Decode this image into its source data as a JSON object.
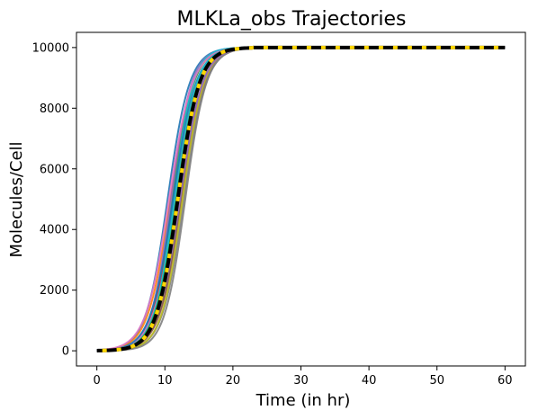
{
  "chart_data": {
    "type": "line",
    "title": "MLKLa_obs Trajectories",
    "xlabel": "Time (in hr)",
    "ylabel": "Molecules/Cell",
    "xlim": [
      -3,
      63
    ],
    "ylim": [
      -500,
      10500
    ],
    "xticks": [
      0,
      10,
      20,
      30,
      40,
      50,
      60
    ],
    "yticks": [
      0,
      2000,
      4000,
      6000,
      8000,
      10000
    ],
    "grid": false,
    "legend": false,
    "plateau": 10000,
    "trajectory_palette": [
      "#1f77b4",
      "#ff7f0e",
      "#2ca02c",
      "#d62728",
      "#9467bd",
      "#8c564b",
      "#e377c2",
      "#7f7f7f",
      "#bcbd22",
      "#17becf"
    ],
    "mean_line_colors": {
      "base": "#000000",
      "dash": "#ffd700"
    },
    "series": [
      {
        "midpoint": 10.4,
        "steepness": 0.62,
        "color": "#1f77b4"
      },
      {
        "midpoint": 10.8,
        "steepness": 0.6,
        "color": "#ff7f0e"
      },
      {
        "midpoint": 11.1,
        "steepness": 0.64,
        "color": "#2ca02c"
      },
      {
        "midpoint": 11.4,
        "steepness": 0.61,
        "color": "#d62728"
      },
      {
        "midpoint": 10.9,
        "steepness": 0.66,
        "color": "#9467bd"
      },
      {
        "midpoint": 11.9,
        "steepness": 0.63,
        "color": "#8c564b"
      },
      {
        "midpoint": 11.6,
        "steepness": 0.59,
        "color": "#e377c2"
      },
      {
        "midpoint": 12.3,
        "steepness": 0.62,
        "color": "#7f7f7f"
      },
      {
        "midpoint": 12.0,
        "steepness": 0.65,
        "color": "#bcbd22"
      },
      {
        "midpoint": 11.3,
        "steepness": 0.7,
        "color": "#17becf"
      },
      {
        "midpoint": 12.5,
        "steepness": 0.6,
        "color": "#8c564b"
      },
      {
        "midpoint": 10.6,
        "steepness": 0.58,
        "color": "#e377c2"
      },
      {
        "midpoint": 12.8,
        "steepness": 0.62,
        "color": "#7f7f7f"
      },
      {
        "midpoint": 11.8,
        "steepness": 0.66,
        "color": "#ff7f0e"
      },
      {
        "midpoint": 11.2,
        "steepness": 0.6,
        "color": "#1f77b4"
      },
      {
        "midpoint": 12.6,
        "steepness": 0.64,
        "color": "#bcbd22"
      },
      {
        "midpoint": 11.5,
        "steepness": 0.63,
        "color": "#17becf"
      },
      {
        "midpoint": 13.0,
        "steepness": 0.65,
        "color": "#7f7f7f"
      },
      {
        "midpoint": 11.7,
        "steepness": 0.62,
        "color": "#2ca02c"
      },
      {
        "midpoint": 12.2,
        "steepness": 0.6,
        "color": "#9467bd"
      }
    ],
    "mean": {
      "midpoint": 11.9,
      "steepness": 0.63
    }
  }
}
